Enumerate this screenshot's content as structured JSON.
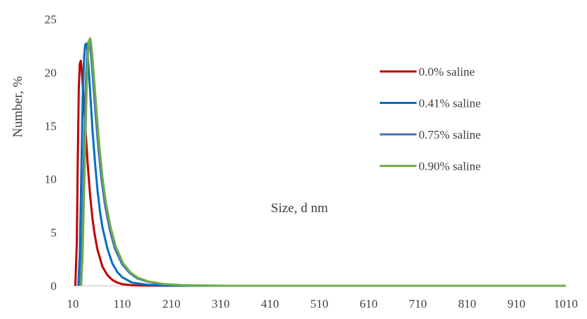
{
  "chart_data": {
    "type": "line",
    "title": "",
    "xlabel": "Size, d nm",
    "ylabel": "Number, %",
    "xlim": [
      10,
      1010
    ],
    "ylim": [
      0,
      25
    ],
    "x_ticks": [
      "10",
      "110",
      "210",
      "310",
      "410",
      "510",
      "610",
      "710",
      "810",
      "910",
      "1010"
    ],
    "y_ticks": [
      "0",
      "5",
      "10",
      "15",
      "20",
      "25"
    ],
    "grid": false,
    "legend_position": "right",
    "series": [
      {
        "name": "0.0% saline",
        "color": "#C00000",
        "points": [
          [
            15,
            0
          ],
          [
            18,
            4
          ],
          [
            20,
            12
          ],
          [
            22,
            18.5
          ],
          [
            24,
            20.8
          ],
          [
            26,
            21.1
          ],
          [
            28,
            20.3
          ],
          [
            32,
            17.5
          ],
          [
            36,
            14.5
          ],
          [
            40,
            11.5
          ],
          [
            45,
            8.5
          ],
          [
            50,
            6.2
          ],
          [
            55,
            4.6
          ],
          [
            60,
            3.4
          ],
          [
            70,
            1.8
          ],
          [
            80,
            1.0
          ],
          [
            90,
            0.55
          ],
          [
            100,
            0.3
          ],
          [
            110,
            0.15
          ],
          [
            130,
            0.05
          ],
          [
            160,
            0.01
          ],
          [
            200,
            0
          ],
          [
            1010,
            0
          ]
        ]
      },
      {
        "name": "0.41% saline",
        "color": "#0070C0",
        "points": [
          [
            21,
            0
          ],
          [
            24,
            3
          ],
          [
            27,
            10
          ],
          [
            30,
            17.5
          ],
          [
            33,
            21.5
          ],
          [
            35,
            22.6
          ],
          [
            37,
            22.7
          ],
          [
            39,
            22.2
          ],
          [
            42,
            20.5
          ],
          [
            46,
            17.5
          ],
          [
            50,
            14.5
          ],
          [
            55,
            11.5
          ],
          [
            60,
            9
          ],
          [
            65,
            7
          ],
          [
            70,
            5.5
          ],
          [
            80,
            3.5
          ],
          [
            90,
            2.1
          ],
          [
            100,
            1.3
          ],
          [
            110,
            0.8
          ],
          [
            130,
            0.3
          ],
          [
            160,
            0.1
          ],
          [
            200,
            0.02
          ],
          [
            250,
            0
          ],
          [
            1010,
            0
          ]
        ]
      },
      {
        "name": "0.75% saline",
        "color": "#4472C4",
        "points": [
          [
            25,
            0
          ],
          [
            28,
            3
          ],
          [
            32,
            11
          ],
          [
            36,
            18.5
          ],
          [
            39,
            21.8
          ],
          [
            41,
            22.8
          ],
          [
            43,
            22.9
          ],
          [
            45,
            22.5
          ],
          [
            48,
            21
          ],
          [
            52,
            18.5
          ],
          [
            57,
            15.5
          ],
          [
            62,
            12.8
          ],
          [
            68,
            10
          ],
          [
            75,
            7.6
          ],
          [
            85,
            5.2
          ],
          [
            95,
            3.5
          ],
          [
            110,
            2.0
          ],
          [
            125,
            1.2
          ],
          [
            140,
            0.7
          ],
          [
            160,
            0.4
          ],
          [
            190,
            0.15
          ],
          [
            230,
            0.05
          ],
          [
            280,
            0.01
          ],
          [
            320,
            0
          ],
          [
            1010,
            0
          ]
        ]
      },
      {
        "name": "0.90% saline",
        "color": "#70AD47",
        "points": [
          [
            27,
            0
          ],
          [
            30,
            3
          ],
          [
            34,
            11
          ],
          [
            38,
            18.5
          ],
          [
            41,
            22
          ],
          [
            43,
            23
          ],
          [
            45,
            23.2
          ],
          [
            47,
            22.8
          ],
          [
            50,
            21.3
          ],
          [
            54,
            18.8
          ],
          [
            59,
            15.8
          ],
          [
            64,
            13
          ],
          [
            70,
            10.2
          ],
          [
            77,
            7.8
          ],
          [
            87,
            5.4
          ],
          [
            97,
            3.7
          ],
          [
            112,
            2.1
          ],
          [
            127,
            1.25
          ],
          [
            142,
            0.75
          ],
          [
            162,
            0.42
          ],
          [
            192,
            0.17
          ],
          [
            232,
            0.06
          ],
          [
            282,
            0.02
          ],
          [
            330,
            0
          ],
          [
            1010,
            0
          ]
        ]
      }
    ]
  }
}
